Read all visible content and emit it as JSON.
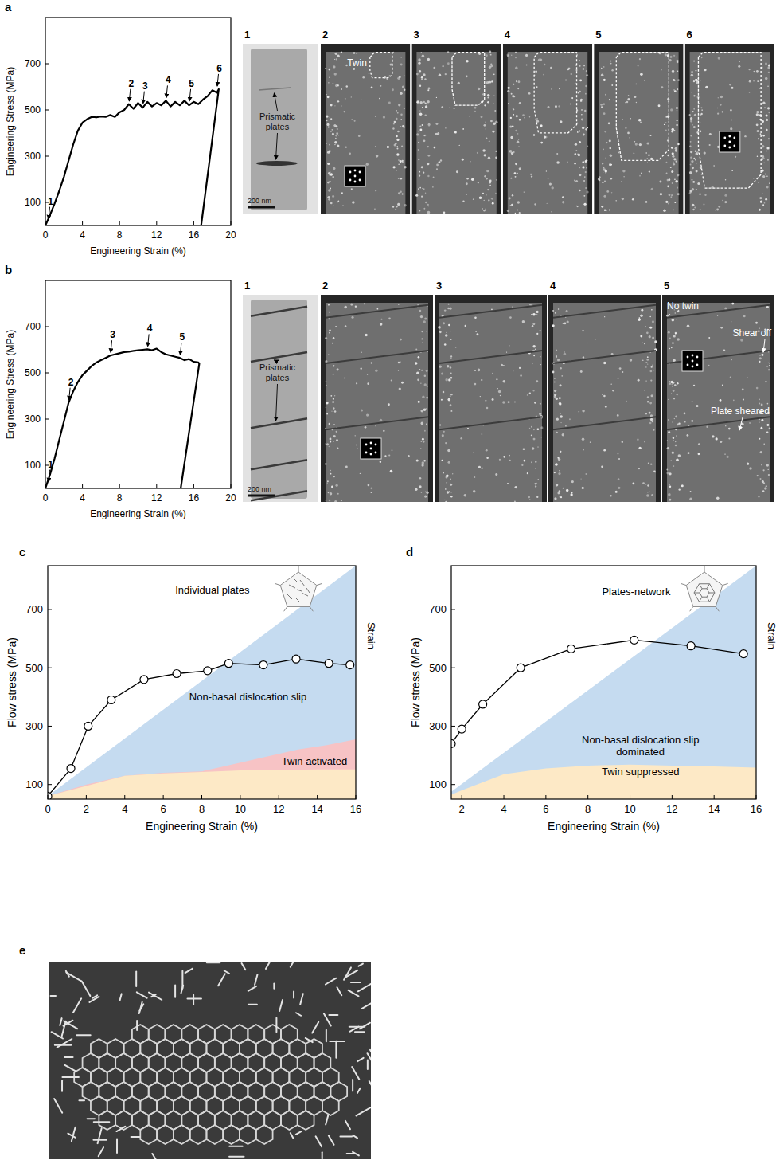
{
  "chart_data": [
    {
      "type": "line",
      "panel_label": "a",
      "x_label": "Engineering Strain (%)",
      "y_label": "Engineering Stress (MPa)",
      "xlim": [
        0,
        20
      ],
      "ylim": [
        0,
        900
      ],
      "xticks": [
        0,
        4,
        8,
        12,
        16,
        20
      ],
      "yticks": [
        100,
        300,
        500,
        700
      ],
      "color": "#000000",
      "x": [
        0,
        0.5,
        1,
        1.5,
        2,
        2.5,
        3,
        3.5,
        4,
        4.5,
        5,
        5.5,
        6,
        6.5,
        7,
        7.5,
        8,
        8.5,
        9,
        9.5,
        10,
        10.5,
        11,
        11.5,
        12,
        12.5,
        13,
        13.5,
        14,
        14.5,
        15,
        15.5,
        16,
        16.5,
        17,
        17.5,
        18,
        18.5,
        18.7,
        16.8
      ],
      "values": [
        0,
        45,
        95,
        150,
        210,
        280,
        350,
        410,
        445,
        460,
        470,
        468,
        472,
        470,
        478,
        470,
        490,
        500,
        525,
        505,
        530,
        510,
        535,
        515,
        530,
        520,
        540,
        515,
        535,
        520,
        540,
        520,
        535,
        525,
        545,
        560,
        585,
        575,
        590,
        0
      ],
      "annotations": [
        {
          "text": "1",
          "x": 0.3,
          "y": 15
        },
        {
          "text": "2",
          "x": 9,
          "y": 525
        },
        {
          "text": "3",
          "x": 10.5,
          "y": 515
        },
        {
          "text": "4",
          "x": 13,
          "y": 540
        },
        {
          "text": "5",
          "x": 15.5,
          "y": 525
        },
        {
          "text": "6",
          "x": 18.5,
          "y": 590
        }
      ]
    },
    {
      "type": "line",
      "panel_label": "b",
      "x_label": "Engineering Strain (%)",
      "y_label": "Engineering Stress (MPa)",
      "xlim": [
        0,
        20
      ],
      "ylim": [
        0,
        900
      ],
      "xticks": [
        0,
        4,
        8,
        12,
        16,
        20
      ],
      "yticks": [
        100,
        300,
        500,
        700
      ],
      "color": "#000000",
      "x": [
        0,
        0.5,
        1,
        1.5,
        2,
        2.5,
        3,
        3.5,
        4,
        4.5,
        5,
        5.5,
        6,
        6.5,
        7,
        7.5,
        8,
        8.5,
        9,
        9.5,
        10,
        10.5,
        11,
        11.5,
        12,
        12.5,
        13,
        13.5,
        14,
        14.5,
        15,
        15.5,
        16,
        16.5,
        16.6,
        14.6
      ],
      "values": [
        0,
        60,
        130,
        210,
        290,
        370,
        420,
        460,
        490,
        510,
        530,
        545,
        555,
        565,
        575,
        580,
        585,
        590,
        592,
        595,
        598,
        600,
        602,
        598,
        605,
        590,
        580,
        575,
        570,
        565,
        555,
        560,
        548,
        545,
        540,
        0
      ],
      "annotations": [
        {
          "text": "1",
          "x": 0.3,
          "y": 15
        },
        {
          "text": "2",
          "x": 2.5,
          "y": 370
        },
        {
          "text": "3",
          "x": 7,
          "y": 575
        },
        {
          "text": "4",
          "x": 11,
          "y": 602
        },
        {
          "text": "5",
          "x": 14.5,
          "y": 565
        }
      ]
    },
    {
      "type": "line",
      "panel_label": "c",
      "x_label": "Engineering Strain (%)",
      "y_label": "Flow stress (MPa)",
      "y2_label": "Strain",
      "xlim": [
        0,
        16
      ],
      "ylim": [
        50,
        850
      ],
      "xticks": [
        0,
        2,
        4,
        6,
        8,
        10,
        12,
        14,
        16
      ],
      "yticks": [
        100,
        300,
        500,
        700
      ],
      "series": [
        {
          "type": "area",
          "color": "#c5dbf0",
          "x": [
            0,
            16
          ],
          "values": [
            60,
            850
          ]
        },
        {
          "type": "area",
          "color": "#f7c3c5",
          "x": [
            0,
            2,
            4,
            6,
            8,
            9,
            11,
            13,
            14.5,
            16
          ],
          "values": [
            60,
            100,
            130,
            140,
            145,
            160,
            190,
            220,
            235,
            255
          ]
        },
        {
          "type": "area",
          "color": "#fde9c6",
          "x": [
            0,
            2,
            4,
            6,
            8,
            10,
            12,
            14,
            16
          ],
          "values": [
            60,
            95,
            130,
            138,
            143,
            148,
            150,
            152,
            152
          ]
        },
        {
          "type": "line",
          "marker": "circle",
          "color": "#000000",
          "x": [
            0,
            1.2,
            2.1,
            3.3,
            5,
            6.7,
            8.3,
            9.4,
            11.2,
            12.9,
            14.6,
            15.7
          ],
          "values": [
            60,
            155,
            300,
            390,
            460,
            480,
            490,
            515,
            510,
            530,
            515,
            510
          ]
        }
      ],
      "annotations": [
        {
          "text": "Individual plates",
          "x": 8.55,
          "y": 755
        },
        {
          "text": "Non-basal dislocation slip",
          "x": 10.4,
          "y": 389
        },
        {
          "text": "Twin activated",
          "x": 13.85,
          "y": 167
        }
      ]
    },
    {
      "type": "line",
      "panel_label": "d",
      "x_label": "Engineering Strain (%)",
      "y_label": "Flow stress (MPa)",
      "y2_label": "Strain",
      "xlim": [
        1.5,
        16
      ],
      "ylim": [
        50,
        850
      ],
      "xticks": [
        2,
        4,
        6,
        8,
        10,
        12,
        14,
        16
      ],
      "yticks": [
        100,
        300,
        500,
        700
      ],
      "series": [
        {
          "type": "area",
          "color": "#c5dbf0",
          "x": [
            1.5,
            16
          ],
          "values": [
            75,
            850
          ]
        },
        {
          "type": "area",
          "color": "#fde9c6",
          "x": [
            1.5,
            2,
            4,
            6,
            8,
            10,
            12,
            14,
            16
          ],
          "values": [
            65,
            80,
            135,
            155,
            165,
            168,
            165,
            162,
            158
          ]
        },
        {
          "type": "line",
          "marker": "circle",
          "color": "#000000",
          "x": [
            1.5,
            2,
            3,
            4.8,
            7.2,
            10.2,
            12.9,
            15.4
          ],
          "values": [
            240,
            290,
            375,
            500,
            565,
            595,
            575,
            548
          ]
        }
      ],
      "annotations": [
        {
          "text": "Plates-network",
          "x": 10.3,
          "y": 750
        },
        {
          "text": "Non-basal dislocation slip dominated",
          "x": 10.5,
          "y": 240
        },
        {
          "text": "Twin suppressed",
          "x": 10.5,
          "y": 131
        }
      ]
    }
  ],
  "micrographs": [
    {
      "frames": [
        {
          "number": "1",
          "labels": [
            "Prismatic plates",
            "200 nm"
          ]
        },
        {
          "number": "2",
          "labels": [
            "Twin"
          ]
        },
        {
          "number": "3",
          "labels": []
        },
        {
          "number": "4",
          "labels": []
        },
        {
          "number": "5",
          "labels": []
        },
        {
          "number": "6",
          "labels": []
        }
      ]
    },
    {
      "frames": [
        {
          "number": "1",
          "labels": [
            "Prismatic plates",
            "200 nm"
          ]
        },
        {
          "number": "2",
          "labels": []
        },
        {
          "number": "3",
          "labels": []
        },
        {
          "number": "4",
          "labels": []
        },
        {
          "number": "5",
          "labels": [
            "No twin",
            "Shear off",
            "Plate sheared"
          ]
        }
      ]
    },
    {
      "panel_label": "e"
    }
  ]
}
